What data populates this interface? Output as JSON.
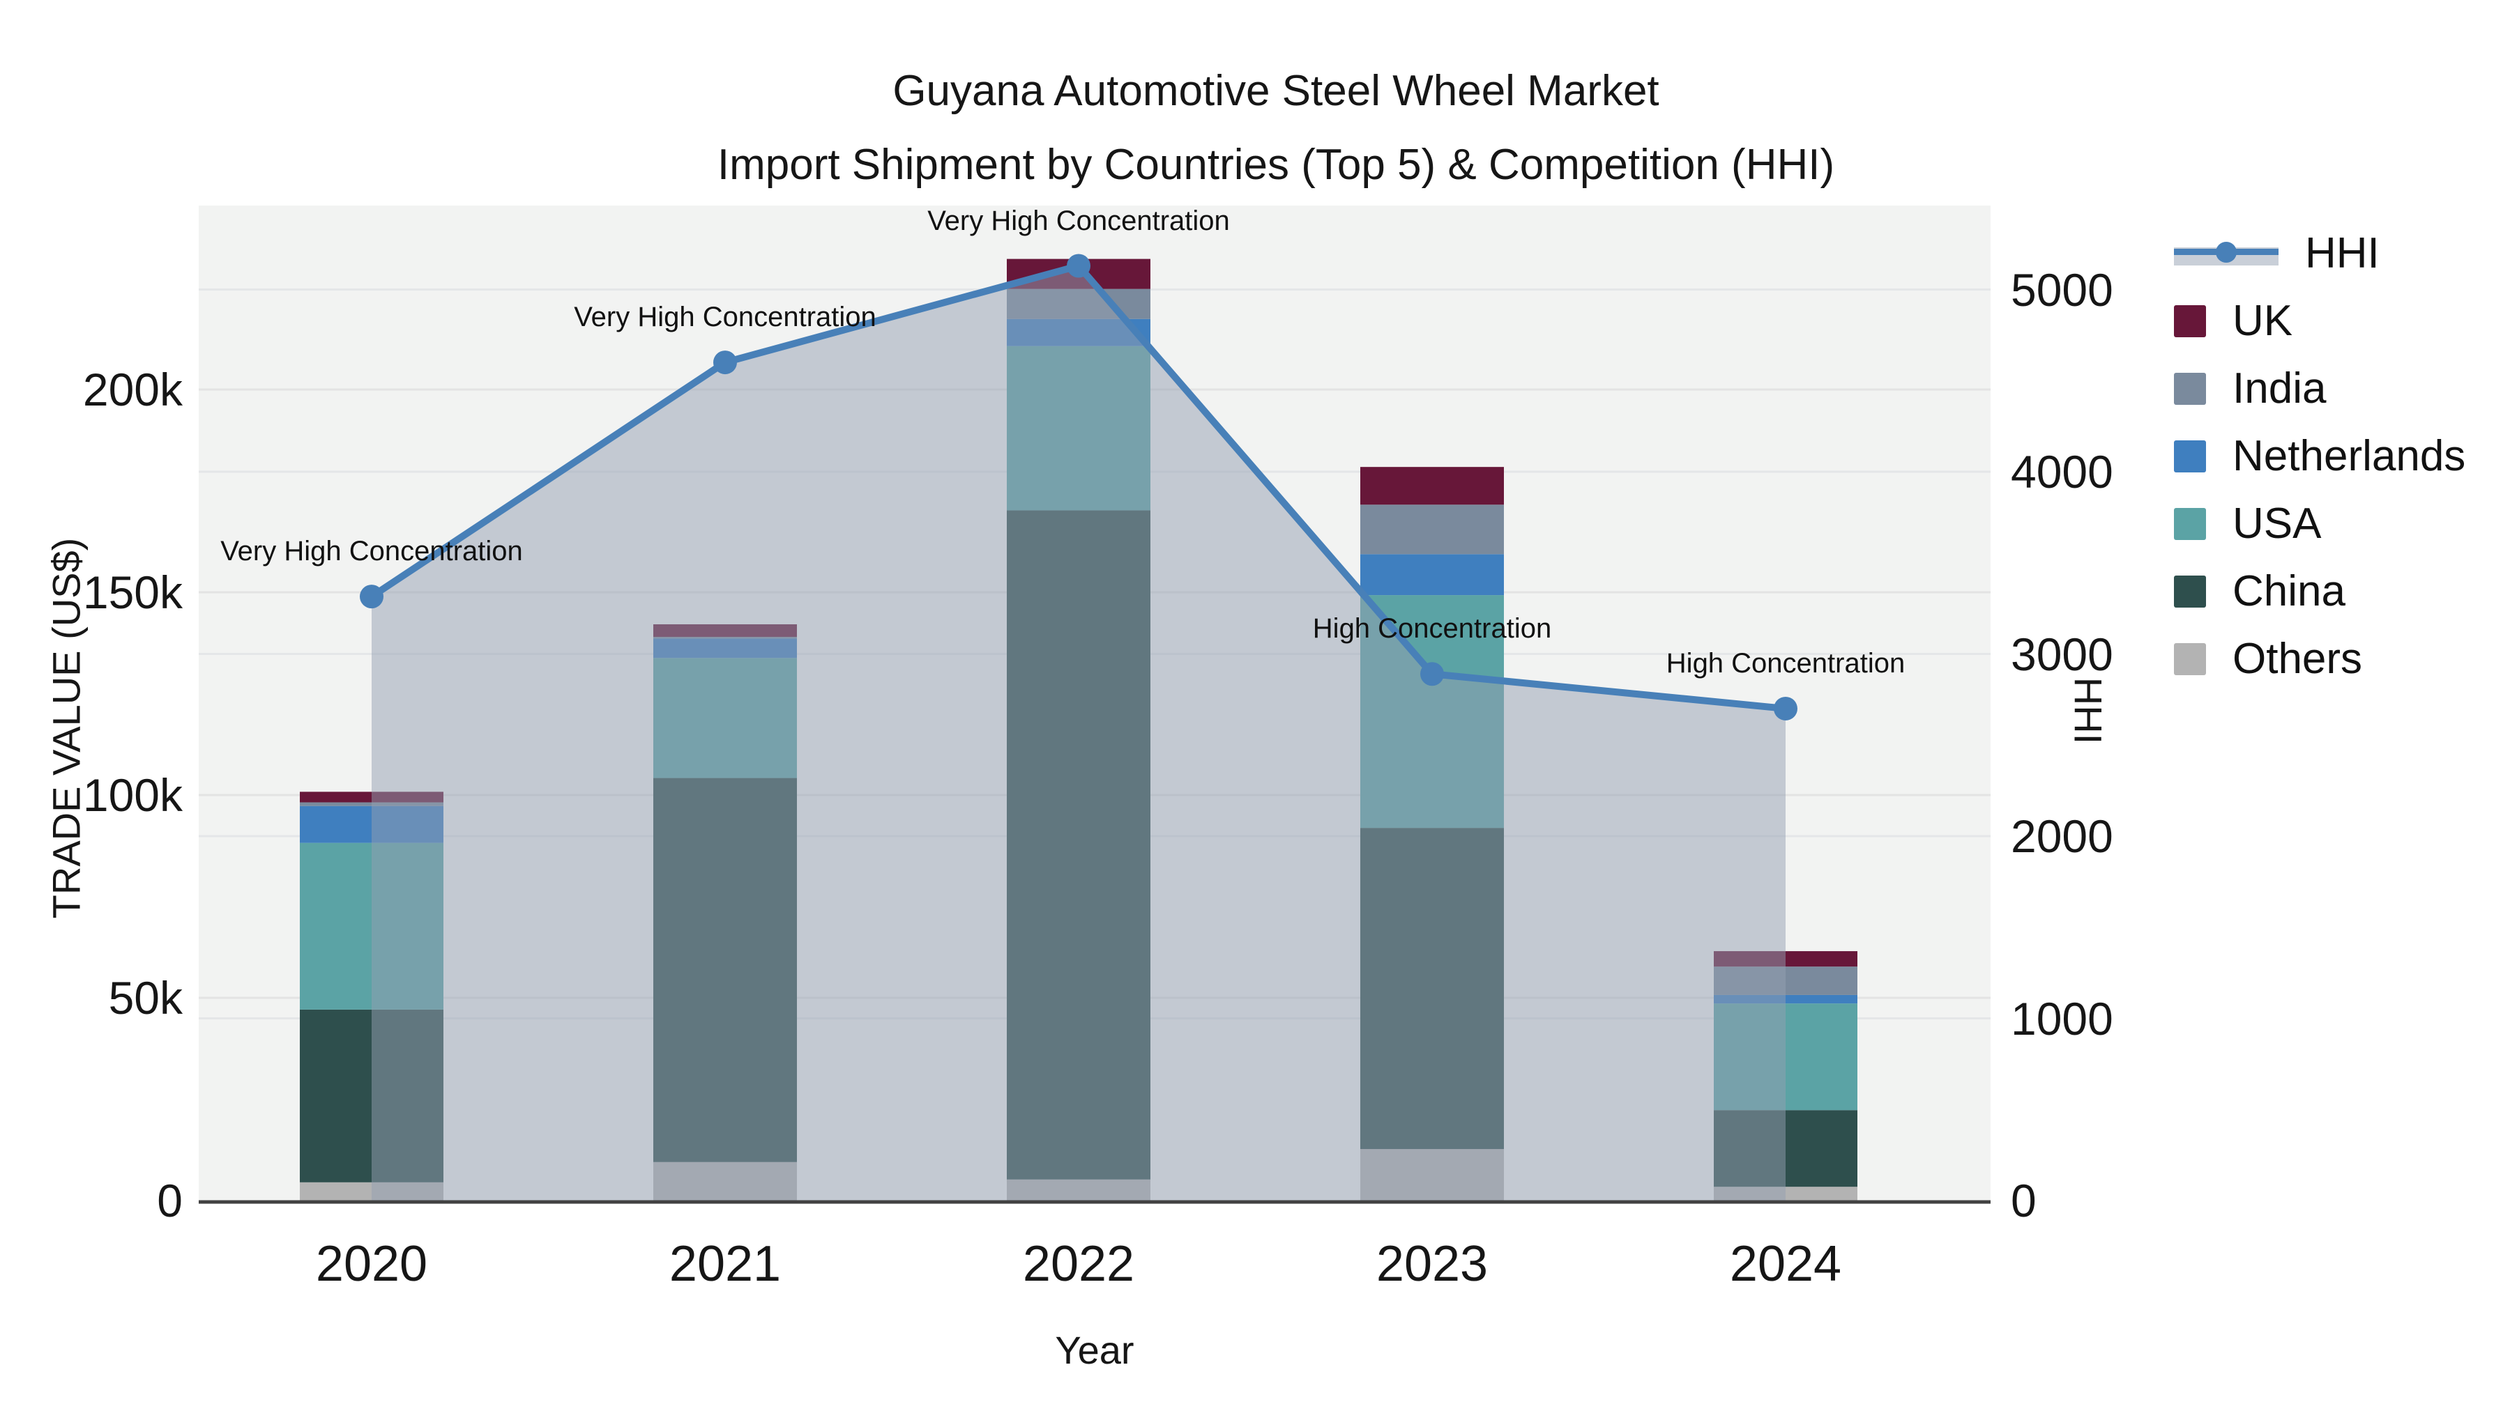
{
  "title": {
    "line1": "Guyana Automotive Steel Wheel Market",
    "line2": "Import Shipment by Countries (Top 5) & Competition (HHI)"
  },
  "axes": {
    "x": {
      "title": "Year",
      "ticks": [
        "2020",
        "2021",
        "2022",
        "2023",
        "2024"
      ]
    },
    "y_left": {
      "title": "TRADE VALUE (US$)",
      "ticks": [
        "0",
        "50k",
        "100k",
        "150k",
        "200k"
      ],
      "tick_values": [
        0,
        50000,
        100000,
        150000,
        200000
      ]
    },
    "y_right": {
      "title": "HHI",
      "ticks": [
        "0",
        "1000",
        "2000",
        "3000",
        "4000",
        "5000"
      ],
      "tick_values": [
        0,
        1000,
        2000,
        3000,
        4000,
        5000
      ]
    }
  },
  "legend": [
    {
      "label": "HHI",
      "type": "line",
      "color": "#4880b8"
    },
    {
      "label": "UK",
      "type": "swatch",
      "color": "#671739"
    },
    {
      "label": "India",
      "type": "swatch",
      "color": "#7a8a9d"
    },
    {
      "label": "Netherlands",
      "type": "swatch",
      "color": "#3f7fbf"
    },
    {
      "label": "USA",
      "type": "swatch",
      "color": "#5ba3a5"
    },
    {
      "label": "China",
      "type": "swatch",
      "color": "#2e4f4d"
    },
    {
      "label": "Others",
      "type": "swatch",
      "color": "#b3b3b3"
    }
  ],
  "chart_data": {
    "type": "combo: stacked-bar (left axis) + line-with-area (right axis)",
    "title": "Guyana Automotive Steel Wheel Market — Import Shipment by Countries (Top 5) & Competition (HHI)",
    "categories": [
      "2020",
      "2021",
      "2022",
      "2023",
      "2024"
    ],
    "xlabel": "Year",
    "ylabel_left": "TRADE VALUE (US$)",
    "ylabel_right": "HHI",
    "ylim_left": [
      0,
      200000
    ],
    "ylim_right": [
      0,
      5000
    ],
    "grid": true,
    "legend_position": "right",
    "stack_order_bottom_to_top": [
      "Others",
      "China",
      "USA",
      "Netherlands",
      "India",
      "UK"
    ],
    "series": [
      {
        "name": "Others",
        "color": "#b3b3b3",
        "values": [
          4500,
          9500,
          5200,
          12700,
          3400
        ]
      },
      {
        "name": "China",
        "color": "#2e4f4d",
        "values": [
          42600,
          94700,
          165000,
          79200,
          18900
        ]
      },
      {
        "name": "USA",
        "color": "#5ba3a5",
        "values": [
          41100,
          29600,
          40500,
          57400,
          26300
        ]
      },
      {
        "name": "Netherlands",
        "color": "#3f7fbf",
        "values": [
          9100,
          4800,
          6700,
          10100,
          2100
        ]
      },
      {
        "name": "India",
        "color": "#7a8a9d",
        "values": [
          900,
          400,
          7400,
          12200,
          7000
        ]
      },
      {
        "name": "UK",
        "color": "#671739",
        "values": [
          2600,
          3100,
          7400,
          9300,
          3800
        ]
      }
    ],
    "bar_totals": [
      100800,
      142100,
      232200,
      180900,
      61500
    ],
    "hhi_line": {
      "name": "HHI",
      "color": "#4880b8",
      "area_fill": "rgba(147,160,178,0.50)",
      "values": [
        3315,
        4600,
        5130,
        2890,
        2700
      ]
    },
    "annotations": [
      {
        "x_index": 0,
        "text": "Very High Concentration"
      },
      {
        "x_index": 1,
        "text": "Very High Concentration"
      },
      {
        "x_index": 2,
        "text": "Very High Concentration"
      },
      {
        "x_index": 3,
        "text": "High Concentration"
      },
      {
        "x_index": 4,
        "text": "High Concentration"
      }
    ]
  }
}
